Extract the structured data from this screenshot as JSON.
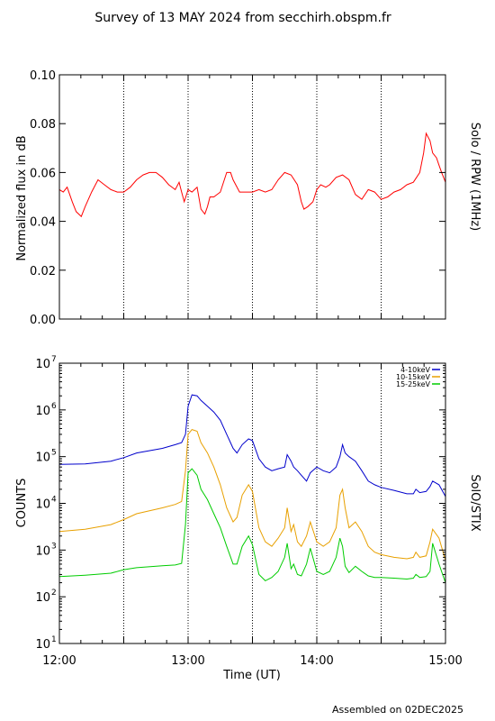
{
  "title": "Survey of 13 MAY 2024 from secchirh.obspm.fr",
  "footer": "Assembled on 02DEC2025",
  "chart_data": [
    {
      "type": "line",
      "right_label": "Solo / RPW (1MHz)",
      "ylabel": "Normalized flux in dB",
      "ylim": [
        0.0,
        0.1
      ],
      "yticks": [
        "0.00",
        "0.02",
        "0.04",
        "0.06",
        "0.08",
        "0.10"
      ],
      "xlim_hours": [
        12.0,
        15.0
      ],
      "vlines_hours": [
        12.5,
        13.0,
        13.5,
        14.0,
        14.5
      ],
      "series": [
        {
          "color": "#ff0000",
          "x_hours": [
            12.0,
            12.03,
            12.06,
            12.1,
            12.13,
            12.17,
            12.2,
            12.25,
            12.3,
            12.35,
            12.4,
            12.45,
            12.5,
            12.55,
            12.6,
            12.65,
            12.7,
            12.75,
            12.8,
            12.85,
            12.9,
            12.93,
            12.95,
            12.97,
            13.0,
            13.03,
            13.07,
            13.1,
            13.13,
            13.15,
            13.17,
            13.2,
            13.25,
            13.3,
            13.33,
            13.35,
            13.4,
            13.45,
            13.5,
            13.55,
            13.6,
            13.65,
            13.7,
            13.75,
            13.8,
            13.85,
            13.88,
            13.9,
            13.93,
            13.97,
            14.0,
            14.03,
            14.07,
            14.1,
            14.15,
            14.2,
            14.25,
            14.3,
            14.35,
            14.4,
            14.45,
            14.5,
            14.55,
            14.6,
            14.65,
            14.7,
            14.75,
            14.8,
            14.83,
            14.85,
            14.88,
            14.9,
            14.93,
            14.95,
            14.97,
            15.0
          ],
          "values": [
            0.053,
            0.052,
            0.054,
            0.048,
            0.044,
            0.042,
            0.046,
            0.052,
            0.057,
            0.055,
            0.053,
            0.052,
            0.052,
            0.054,
            0.057,
            0.059,
            0.06,
            0.06,
            0.058,
            0.055,
            0.053,
            0.056,
            0.052,
            0.048,
            0.053,
            0.052,
            0.054,
            0.045,
            0.043,
            0.046,
            0.05,
            0.05,
            0.052,
            0.06,
            0.06,
            0.057,
            0.052,
            0.052,
            0.052,
            0.053,
            0.052,
            0.053,
            0.057,
            0.06,
            0.059,
            0.055,
            0.048,
            0.045,
            0.046,
            0.048,
            0.053,
            0.055,
            0.054,
            0.055,
            0.058,
            0.059,
            0.057,
            0.051,
            0.049,
            0.053,
            0.052,
            0.049,
            0.05,
            0.052,
            0.053,
            0.055,
            0.056,
            0.06,
            0.068,
            0.076,
            0.073,
            0.068,
            0.066,
            0.063,
            0.06,
            0.056
          ]
        }
      ]
    },
    {
      "type": "line",
      "right_label": "SolO/STIX",
      "ylabel": "COUNTS",
      "xlabel": "Time (UT)",
      "yscale": "log",
      "ylim": [
        10,
        10000000
      ],
      "ytick_base": "10",
      "ytick_exponents": [
        "1",
        "2",
        "3",
        "4",
        "5",
        "6",
        "7"
      ],
      "xlim_hours": [
        12.0,
        15.0
      ],
      "xticks": [
        {
          "hour": 12.0,
          "label": "12:00"
        },
        {
          "hour": 13.0,
          "label": "13:00"
        },
        {
          "hour": 14.0,
          "label": "14:00"
        },
        {
          "hour": 15.0,
          "label": "15:00"
        }
      ],
      "vlines_hours": [
        12.5,
        13.0,
        13.5,
        14.0,
        14.5
      ],
      "legend_position": "top-right",
      "series": [
        {
          "name": "4-10keV",
          "color": "#0000cc",
          "x_hours": [
            12.0,
            12.2,
            12.4,
            12.5,
            12.6,
            12.8,
            12.9,
            12.95,
            12.98,
            13.0,
            13.03,
            13.07,
            13.1,
            13.15,
            13.2,
            13.25,
            13.3,
            13.35,
            13.38,
            13.42,
            13.47,
            13.5,
            13.55,
            13.6,
            13.65,
            13.7,
            13.75,
            13.77,
            13.8,
            13.82,
            13.85,
            13.88,
            13.92,
            13.95,
            14.0,
            14.05,
            14.1,
            14.15,
            14.18,
            14.2,
            14.22,
            14.25,
            14.3,
            14.35,
            14.4,
            14.45,
            14.5,
            14.6,
            14.7,
            14.75,
            14.77,
            14.8,
            14.85,
            14.88,
            14.9,
            14.95,
            15.0
          ],
          "values": [
            68000,
            70000,
            80000,
            95000,
            120000,
            150000,
            180000,
            200000,
            300000,
            1200000,
            2100000,
            2000000,
            1600000,
            1200000,
            900000,
            600000,
            300000,
            150000,
            120000,
            180000,
            240000,
            220000,
            90000,
            60000,
            50000,
            55000,
            60000,
            110000,
            80000,
            60000,
            50000,
            40000,
            30000,
            45000,
            60000,
            50000,
            45000,
            60000,
            100000,
            180000,
            120000,
            100000,
            80000,
            50000,
            30000,
            25000,
            22000,
            19000,
            16000,
            16000,
            20000,
            17000,
            18000,
            23000,
            30000,
            25000,
            14000
          ]
        },
        {
          "name": "10-15keV",
          "color": "#e8a000",
          "x_hours": [
            12.0,
            12.2,
            12.4,
            12.5,
            12.6,
            12.8,
            12.9,
            12.95,
            12.98,
            13.0,
            13.03,
            13.07,
            13.1,
            13.15,
            13.2,
            13.25,
            13.3,
            13.35,
            13.38,
            13.42,
            13.47,
            13.5,
            13.55,
            13.6,
            13.65,
            13.7,
            13.75,
            13.77,
            13.8,
            13.82,
            13.85,
            13.88,
            13.92,
            13.95,
            14.0,
            14.05,
            14.1,
            14.15,
            14.18,
            14.2,
            14.22,
            14.25,
            14.3,
            14.35,
            14.4,
            14.45,
            14.5,
            14.6,
            14.7,
            14.75,
            14.77,
            14.8,
            14.85,
            14.88,
            14.9,
            14.95,
            15.0
          ],
          "values": [
            2500,
            2800,
            3500,
            4500,
            6000,
            8000,
            9500,
            11000,
            50000,
            300000,
            380000,
            350000,
            200000,
            120000,
            60000,
            25000,
            8000,
            4000,
            5000,
            15000,
            25000,
            18000,
            3000,
            1500,
            1200,
            1800,
            3000,
            8000,
            2500,
            3500,
            1500,
            1200,
            2000,
            4000,
            1500,
            1200,
            1500,
            3000,
            15000,
            20000,
            8000,
            3000,
            4000,
            2500,
            1200,
            900,
            800,
            700,
            650,
            700,
            900,
            700,
            750,
            1500,
            2800,
            1800,
            600
          ]
        },
        {
          "name": "15-25keV",
          "color": "#00cc00",
          "x_hours": [
            12.0,
            12.2,
            12.4,
            12.5,
            12.6,
            12.8,
            12.9,
            12.95,
            12.98,
            13.0,
            13.03,
            13.07,
            13.1,
            13.15,
            13.2,
            13.25,
            13.3,
            13.35,
            13.38,
            13.42,
            13.47,
            13.5,
            13.55,
            13.6,
            13.65,
            13.7,
            13.75,
            13.77,
            13.8,
            13.82,
            13.85,
            13.88,
            13.92,
            13.95,
            14.0,
            14.05,
            14.1,
            14.15,
            14.18,
            14.2,
            14.22,
            14.25,
            14.3,
            14.35,
            14.4,
            14.45,
            14.5,
            14.6,
            14.7,
            14.75,
            14.77,
            14.8,
            14.85,
            14.88,
            14.9,
            14.95,
            15.0
          ],
          "values": [
            270,
            290,
            320,
            380,
            420,
            460,
            480,
            520,
            3500,
            45000,
            55000,
            40000,
            20000,
            12000,
            6000,
            3000,
            1200,
            500,
            500,
            1200,
            2000,
            1300,
            300,
            220,
            260,
            350,
            700,
            1400,
            400,
            500,
            300,
            280,
            500,
            1100,
            350,
            300,
            350,
            700,
            1800,
            1200,
            450,
            330,
            450,
            350,
            280,
            260,
            260,
            250,
            240,
            250,
            300,
            260,
            270,
            350,
            1400,
            500,
            200
          ]
        }
      ]
    }
  ]
}
